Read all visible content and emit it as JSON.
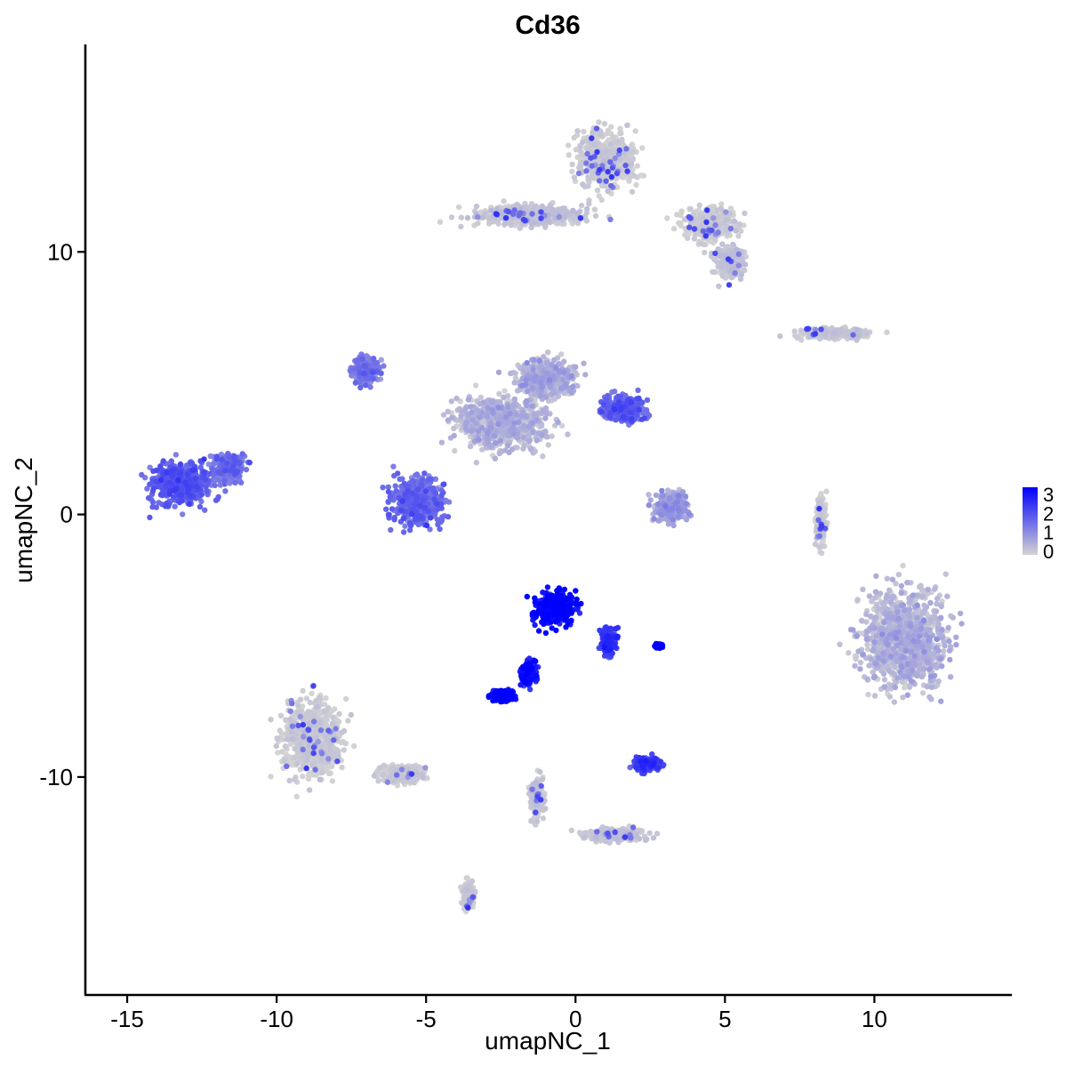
{
  "chart_data": {
    "type": "scatter",
    "title": "Cd36",
    "xlabel": "umapNC_1",
    "ylabel": "umapNC_2",
    "xlim": [
      -16.4,
      14.6
    ],
    "ylim": [
      -18.3,
      17.9
    ],
    "x_ticks": [
      -15,
      -10,
      -5,
      0,
      5,
      10
    ],
    "x_tick_labels": [
      "-15",
      "-10",
      "-5",
      "0",
      "5",
      "10"
    ],
    "y_ticks": [
      -10,
      0,
      10
    ],
    "y_tick_labels": [
      "-10",
      "0",
      "10"
    ],
    "grid": false,
    "legend": {
      "position": "right",
      "title": "",
      "breaks": [
        0,
        1,
        2,
        3
      ],
      "labels": [
        "0",
        "1",
        "2",
        "3"
      ],
      "low_color": "#d3d3d3",
      "high_color": "#0000ff"
    },
    "point_color_low": "#d3d3d3",
    "point_color_high": "#0000ff",
    "clusters": [
      {
        "name": "left-purple",
        "center": [
          -13.2,
          1.2
        ],
        "spread": [
          1.3,
          1.0
        ],
        "expr": 1.6
      },
      {
        "name": "left-purple-tip",
        "center": [
          -11.6,
          1.8
        ],
        "spread": [
          0.6,
          0.6
        ],
        "expr": 1.3
      },
      {
        "name": "top-right-gray",
        "center": [
          1.0,
          13.5
        ],
        "spread": [
          1.2,
          1.3
        ],
        "expr": 0.05
      },
      {
        "name": "top-right-arm",
        "center": [
          4.5,
          11.0
        ],
        "spread": [
          1.1,
          0.8
        ],
        "expr": 0.05
      },
      {
        "name": "top-left-arm",
        "center": [
          -1.5,
          11.4
        ],
        "spread": [
          2.2,
          0.5
        ],
        "expr": 0.15
      },
      {
        "name": "right-arm-lower",
        "center": [
          5.2,
          9.6
        ],
        "spread": [
          0.6,
          0.7
        ],
        "expr": 0.15
      },
      {
        "name": "center-upper-left",
        "center": [
          -7.0,
          5.5
        ],
        "spread": [
          0.6,
          0.6
        ],
        "expr": 1.1
      },
      {
        "name": "center-ring",
        "center": [
          -5.3,
          0.5
        ],
        "spread": [
          1.1,
          1.1
        ],
        "expr": 1.4
      },
      {
        "name": "center-body",
        "center": [
          -2.5,
          3.5
        ],
        "spread": [
          1.9,
          1.2
        ],
        "expr": 0.3
      },
      {
        "name": "center-upper-mid",
        "center": [
          -1.0,
          5.2
        ],
        "spread": [
          1.2,
          0.9
        ],
        "expr": 0.4
      },
      {
        "name": "center-right-blob",
        "center": [
          1.6,
          4.0
        ],
        "spread": [
          0.9,
          0.6
        ],
        "expr": 1.5
      },
      {
        "name": "right-small-mixed",
        "center": [
          3.2,
          0.3
        ],
        "spread": [
          0.7,
          0.7
        ],
        "expr": 0.6
      },
      {
        "name": "top-right-strip",
        "center": [
          8.6,
          6.9
        ],
        "spread": [
          1.5,
          0.25
        ],
        "expr": 0.1
      },
      {
        "name": "right-large-gray",
        "center": [
          11.0,
          -4.8
        ],
        "spread": [
          1.7,
          2.2
        ],
        "expr": 0.3
      },
      {
        "name": "bottom-left-gray",
        "center": [
          -8.8,
          -8.5
        ],
        "spread": [
          1.2,
          1.8
        ],
        "expr": 0.05
      },
      {
        "name": "bottom-left-tail",
        "center": [
          -5.8,
          -9.9
        ],
        "spread": [
          0.9,
          0.4
        ],
        "expr": 0.05
      },
      {
        "name": "mid-blue-main",
        "center": [
          -0.7,
          -3.6
        ],
        "spread": [
          0.8,
          0.8
        ],
        "expr": 2.8
      },
      {
        "name": "mid-blue-stem",
        "center": [
          -1.6,
          -6.0
        ],
        "spread": [
          0.3,
          0.6
        ],
        "expr": 2.6
      },
      {
        "name": "mid-blue-foot",
        "center": [
          -2.4,
          -6.9
        ],
        "spread": [
          0.5,
          0.25
        ],
        "expr": 2.8
      },
      {
        "name": "mid-blue-right",
        "center": [
          1.1,
          -4.8
        ],
        "spread": [
          0.3,
          0.6
        ],
        "expr": 2.1
      },
      {
        "name": "bottom-purple",
        "center": [
          2.4,
          -9.5
        ],
        "spread": [
          0.5,
          0.3
        ],
        "expr": 2.0
      },
      {
        "name": "bottom-small-gray",
        "center": [
          -1.3,
          -10.8
        ],
        "spread": [
          0.3,
          0.9
        ],
        "expr": 0.1
      },
      {
        "name": "bottom-gray-arm",
        "center": [
          1.3,
          -12.2
        ],
        "spread": [
          1.2,
          0.3
        ],
        "expr": 0.15
      },
      {
        "name": "low-gray-drop",
        "center": [
          -3.6,
          -14.5
        ],
        "spread": [
          0.25,
          0.6
        ],
        "expr": 0.05
      },
      {
        "name": "right-thin-strip",
        "center": [
          8.2,
          -0.3
        ],
        "spread": [
          0.2,
          1.1
        ],
        "expr": 0.05
      },
      {
        "name": "blue-dot-small",
        "center": [
          2.8,
          -5.0
        ],
        "spread": [
          0.15,
          0.08
        ],
        "expr": 3.0
      }
    ]
  }
}
